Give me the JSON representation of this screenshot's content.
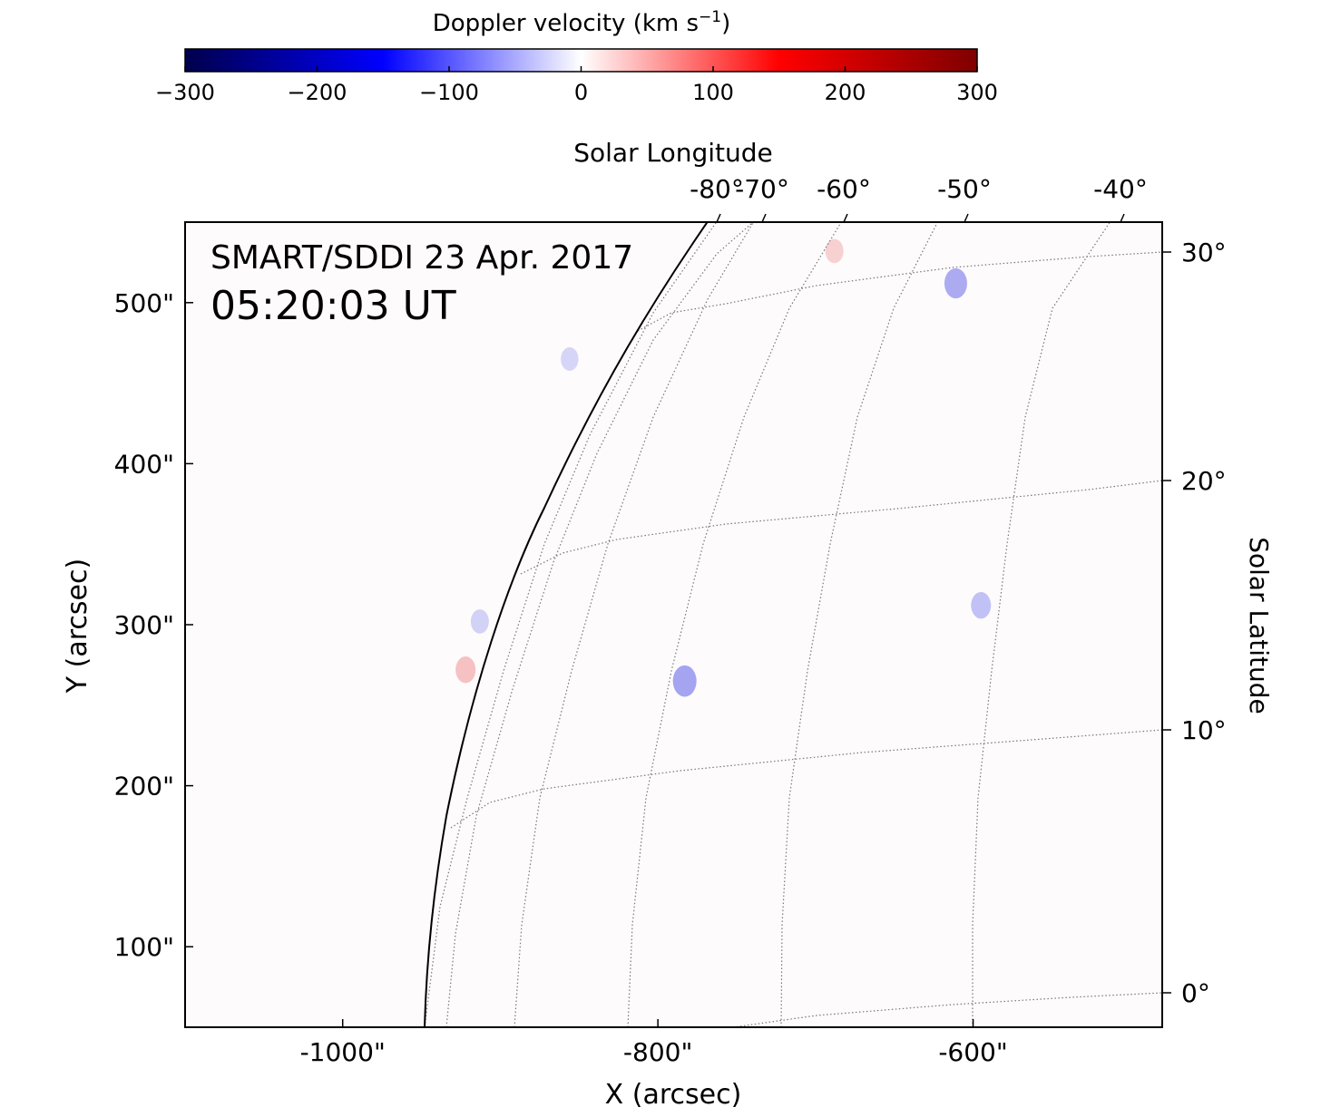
{
  "chart_data": {
    "type": "heatmap",
    "title": "",
    "annotation": {
      "line1": "SMART/SDDI 23 Apr. 2017",
      "line2": "05:20:03 UT"
    },
    "xlabel": "X (arcsec)",
    "ylabel": "Y (arcsec)",
    "xlim": [
      -1100,
      -480
    ],
    "ylim": [
      50,
      550
    ],
    "x_ticks": [
      -1000,
      -800,
      -600
    ],
    "x_tick_labels": [
      "-1000\"",
      "-800\"",
      "-600\""
    ],
    "y_ticks": [
      100,
      200,
      300,
      400,
      500
    ],
    "y_tick_labels": [
      "100\"",
      "200\"",
      "300\"",
      "400\"",
      "500\""
    ],
    "secondary_x_label": "Solar Longitude",
    "longitude_labels": [
      "-80°",
      "-70°",
      "-60°",
      "-50°",
      "-40°"
    ],
    "secondary_y_label": "Solar Latitude",
    "latitude_labels": [
      "0°",
      "10°",
      "20°",
      "30°"
    ],
    "colorbar": {
      "label": "Doppler velocity (km s",
      "label_sup": "−1",
      "label_end": ")",
      "range": [
        -300,
        300
      ],
      "ticks": [
        -300,
        -200,
        -100,
        0,
        100,
        200,
        300
      ],
      "tick_labels": [
        "−300",
        "−200",
        "−100",
        "0",
        "100",
        "200",
        "300"
      ],
      "colormap": "seismic",
      "colors": [
        "#00004c",
        "#0000ff",
        "#ffffff",
        "#ff0000",
        "#7f0000"
      ]
    },
    "grid": true,
    "features": [
      {
        "x": -922,
        "y": 272,
        "v": 40
      },
      {
        "x": -913,
        "y": 302,
        "v": -20
      },
      {
        "x": -783,
        "y": 265,
        "v": -80
      },
      {
        "x": -595,
        "y": 312,
        "v": -40
      },
      {
        "x": -611,
        "y": 512,
        "v": -70
      },
      {
        "x": -688,
        "y": 532,
        "v": 20
      },
      {
        "x": -856,
        "y": 465,
        "v": -15
      }
    ]
  }
}
